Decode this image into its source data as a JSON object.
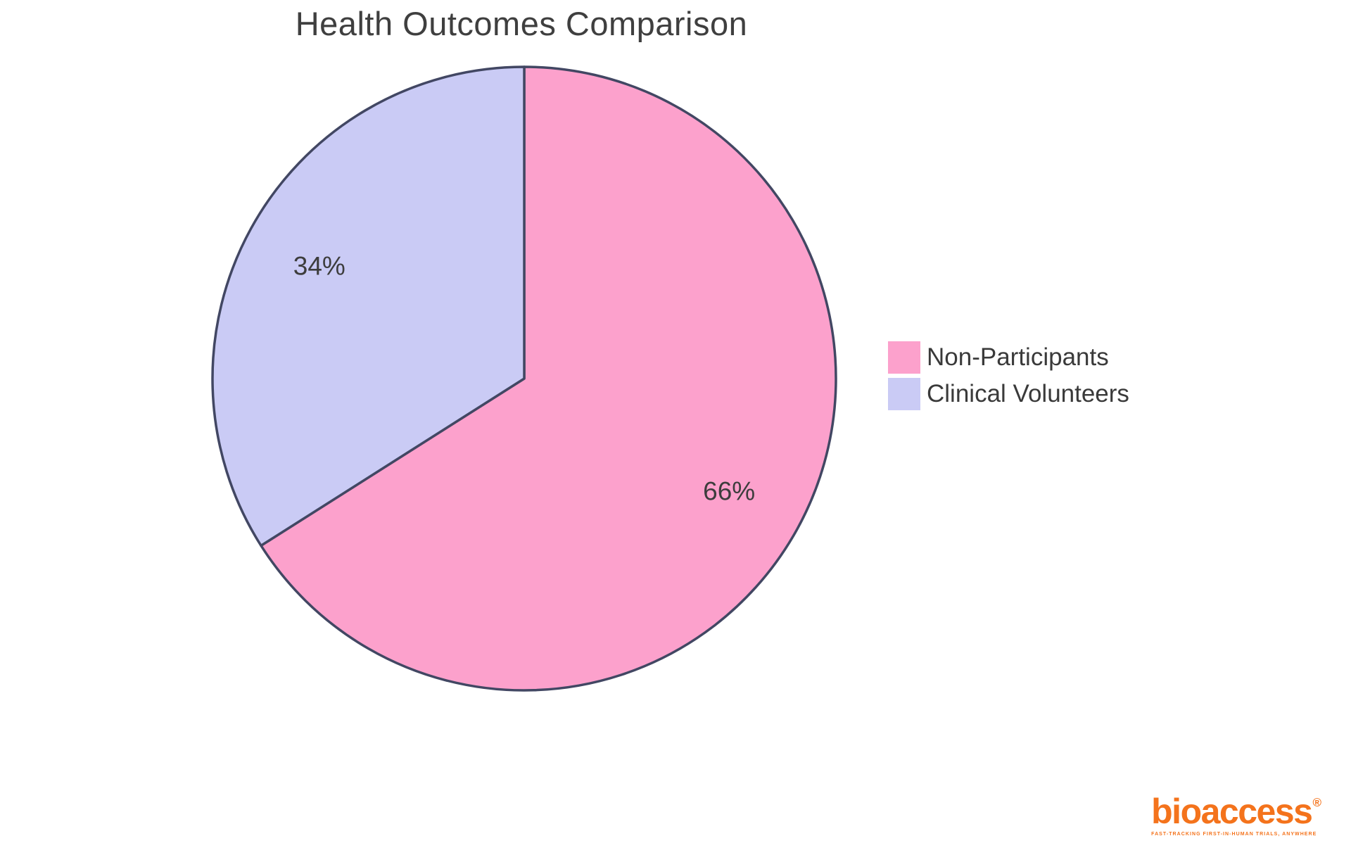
{
  "title": "Health Outcomes Comparison",
  "chart_data": {
    "type": "pie",
    "title": "Health Outcomes Comparison",
    "start_angle_deg": 0,
    "direction": "clockwise",
    "stroke_color": "#424763",
    "stroke_width": 3.5,
    "label_color": "#3d3d3d",
    "label_radius_fraction": 0.75,
    "legend_position": "right",
    "slices": [
      {
        "name": "Non-Participants",
        "value": 66,
        "label": "66%",
        "color": "#FCA1CC"
      },
      {
        "name": "Clinical Volunteers",
        "value": 34,
        "label": "34%",
        "color": "#CACBF5"
      }
    ]
  },
  "legend": {
    "items": [
      {
        "label": "Non-Participants"
      },
      {
        "label": "Clinical Volunteers"
      }
    ]
  },
  "logo": {
    "wordmark": "bioaccess",
    "registered_mark": "®",
    "tagline": "FAST-TRACKING FIRST-IN-HUMAN TRIALS, ANYWHERE",
    "color": "#F4731C"
  }
}
